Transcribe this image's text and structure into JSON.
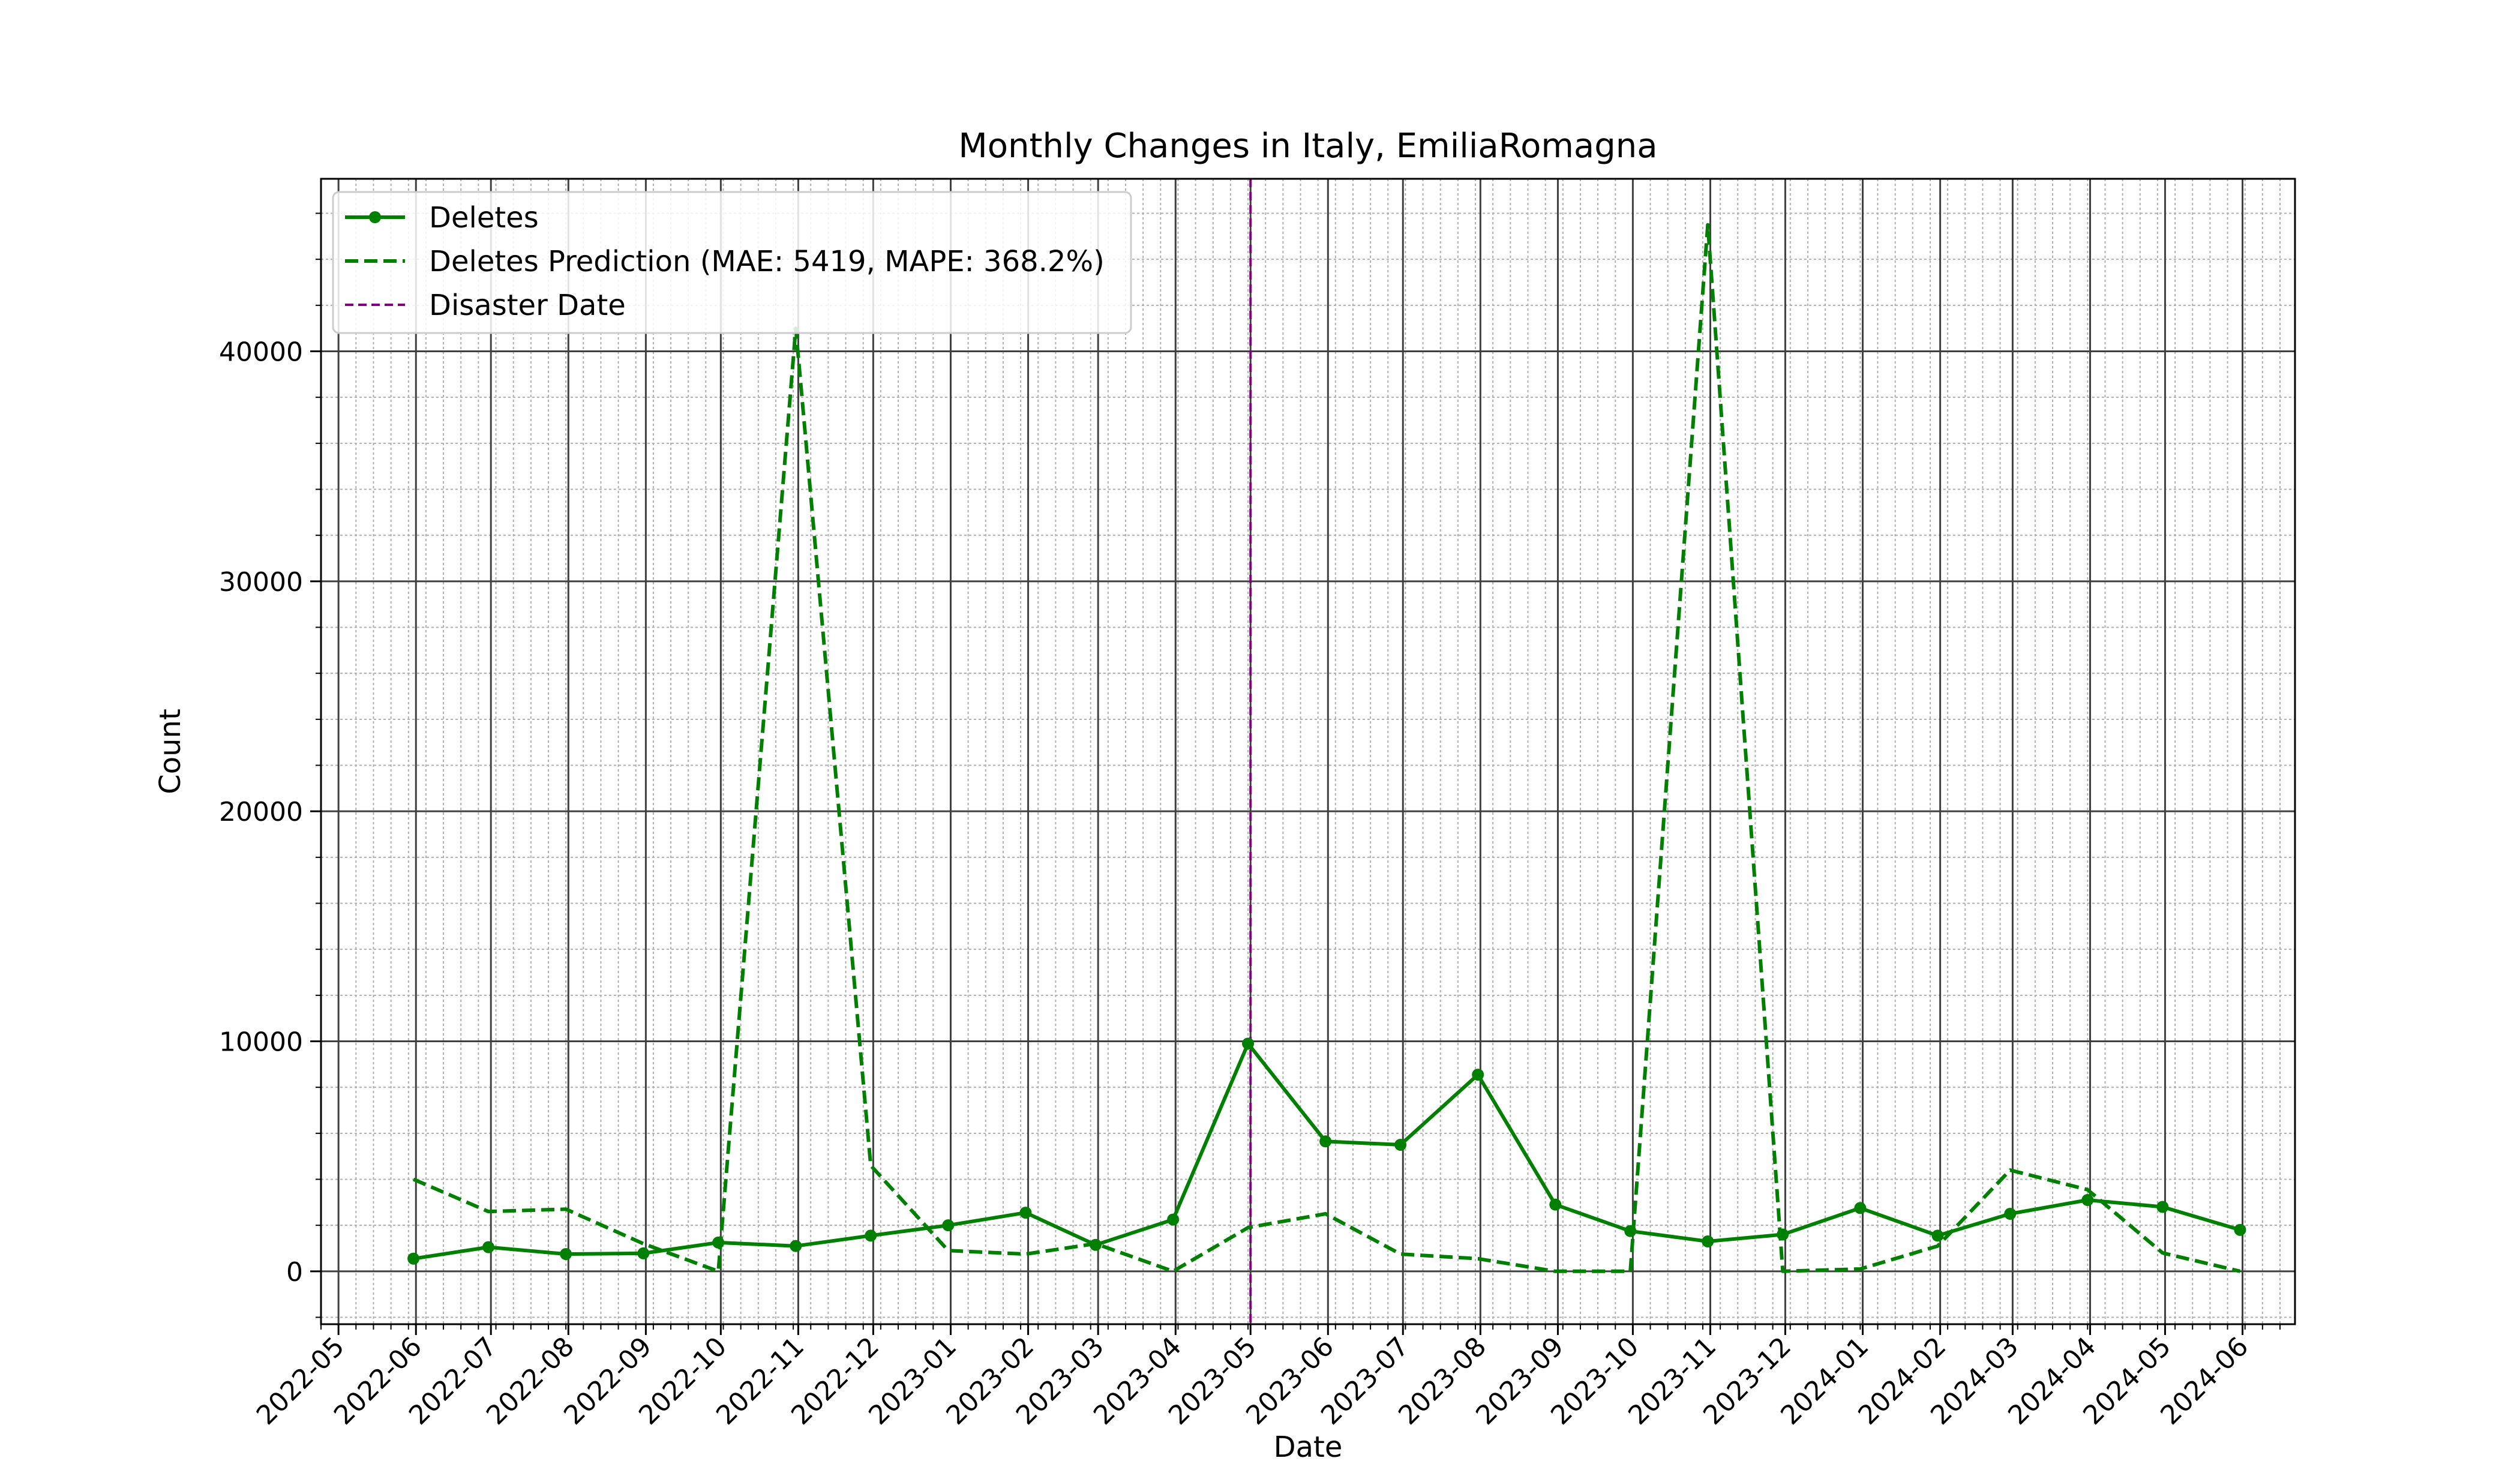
{
  "chart_data": {
    "type": "line",
    "title": "Monthly Changes in Italy, EmiliaRomagna",
    "xlabel": "Date",
    "ylabel": "Count",
    "ylim": [
      -2300,
      47500
    ],
    "xlim": [
      "2022-04-24",
      "2024-06-22"
    ],
    "grid": true,
    "legend_position": "top-left",
    "x_ticks": [
      "2022-05",
      "2022-06",
      "2022-07",
      "2022-08",
      "2022-09",
      "2022-10",
      "2022-11",
      "2022-12",
      "2023-01",
      "2023-02",
      "2023-03",
      "2023-04",
      "2023-05",
      "2023-06",
      "2023-07",
      "2023-08",
      "2023-09",
      "2023-10",
      "2023-11",
      "2023-12",
      "2024-01",
      "2024-02",
      "2024-03",
      "2024-04",
      "2024-05",
      "2024-06"
    ],
    "y_ticks": [
      0,
      10000,
      20000,
      30000,
      40000
    ],
    "x": [
      "2022-05-31",
      "2022-06-30",
      "2022-07-31",
      "2022-08-31",
      "2022-09-30",
      "2022-10-31",
      "2022-11-30",
      "2022-12-31",
      "2023-01-31",
      "2023-02-28",
      "2023-03-31",
      "2023-04-30",
      "2023-05-31",
      "2023-06-30",
      "2023-07-31",
      "2023-08-31",
      "2023-09-30",
      "2023-10-31",
      "2023-11-30",
      "2023-12-31",
      "2024-01-31",
      "2024-02-29",
      "2024-03-31",
      "2024-04-30",
      "2024-05-31"
    ],
    "series": [
      {
        "name": "Deletes",
        "style": "solid-marker",
        "color": "#008000",
        "values": [
          550,
          1050,
          750,
          780,
          1250,
          1100,
          1550,
          2000,
          2550,
          1150,
          2250,
          9900,
          5650,
          5500,
          8550,
          2900,
          1750,
          1300,
          1600,
          2750,
          1550,
          2500,
          3100,
          2800,
          1800
        ]
      },
      {
        "name": "Deletes Prediction (MAE: 5419, MAPE: 368.2%)",
        "style": "dashed",
        "color": "#008000",
        "values": [
          4000,
          2600,
          2700,
          1200,
          0,
          41000,
          4600,
          900,
          750,
          1200,
          0,
          1900,
          2500,
          750,
          550,
          0,
          0,
          45500,
          0,
          100,
          1100,
          4400,
          3550,
          800,
          0
        ]
      }
    ],
    "vline": {
      "name": "Disaster Date",
      "x": "2023-05-01",
      "color": "#800080"
    }
  }
}
